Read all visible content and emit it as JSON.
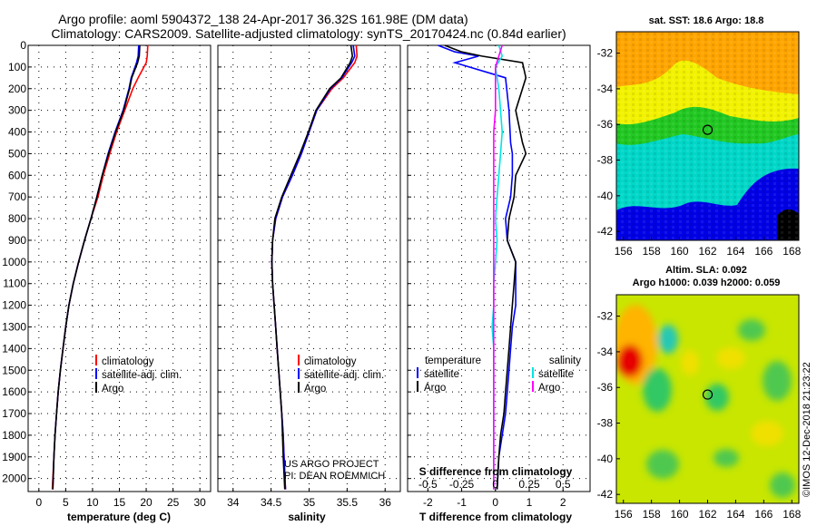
{
  "title_line1": "Argo profile: aoml 5904372_138 24-Apr-2017 36.32S 161.98E (DM data)",
  "title_line2": "Climatology: CARS2009. Satellite-adjusted climatology: synTS_20170424.nc (0.84d earlier)",
  "credit": "US ARGO PROJECT\nPI: DEAN ROEMMICH",
  "watermark": "©IMOS 12-Dec-2018 21:23:22",
  "colors": {
    "climatology": "#ff0000",
    "satellite": "#0000ff",
    "argo": "#000000",
    "sat_t": "#00e5e5",
    "sat_s": "#ff00ff"
  },
  "chart_data": [
    {
      "type": "line",
      "xlabel": "temperature (deg C)",
      "xlim": [
        -2,
        32
      ],
      "ylim": [
        2060,
        0
      ],
      "xticks": [
        0,
        5,
        10,
        15,
        20,
        25,
        30
      ],
      "yticks": [
        0,
        100,
        200,
        300,
        400,
        500,
        600,
        700,
        800,
        900,
        1000,
        1100,
        1200,
        1300,
        1400,
        1500,
        1600,
        1700,
        1800,
        1900,
        2000
      ],
      "legend": [
        "climatology",
        "satellite-adj. clim.",
        "Argo"
      ],
      "series": [
        {
          "name": "climatology",
          "color": "red",
          "x": [
            20.3,
            20.2,
            20.0,
            18.5,
            17.5,
            16.0,
            14.5,
            13.2,
            12.0,
            11.0,
            9.7,
            8.5,
            7.4,
            6.4,
            5.6,
            5.0,
            4.5,
            4.0,
            3.6,
            3.3,
            3.0,
            2.8,
            2.5
          ],
          "y": [
            0,
            50,
            80,
            150,
            200,
            300,
            400,
            500,
            600,
            700,
            800,
            900,
            1000,
            1100,
            1200,
            1300,
            1400,
            1500,
            1600,
            1700,
            1800,
            1900,
            2050
          ]
        },
        {
          "name": "satellite-adj. clim.",
          "color": "blue",
          "x": [
            18.6,
            18.5,
            18.2,
            17.2,
            16.8,
            15.7,
            14.2,
            12.9,
            11.8,
            10.8,
            9.7,
            8.5,
            7.4,
            6.4,
            5.6,
            5.0,
            4.5,
            4.0,
            3.6,
            3.3,
            3.0,
            2.8,
            2.6
          ],
          "y": [
            0,
            50,
            80,
            150,
            200,
            300,
            400,
            500,
            600,
            700,
            800,
            900,
            1000,
            1100,
            1200,
            1300,
            1400,
            1500,
            1600,
            1700,
            1800,
            1900,
            2050
          ]
        },
        {
          "name": "Argo",
          "color": "black",
          "x": [
            18.8,
            18.7,
            18.4,
            17.3,
            16.9,
            15.8,
            14.3,
            13.0,
            11.8,
            10.8,
            9.7,
            8.5,
            7.4,
            6.4,
            5.6,
            5.0,
            4.5,
            4.0,
            3.6,
            3.3,
            3.0,
            2.8,
            2.6
          ],
          "y": [
            0,
            50,
            80,
            150,
            200,
            300,
            400,
            500,
            600,
            700,
            800,
            900,
            1000,
            1100,
            1200,
            1300,
            1400,
            1500,
            1600,
            1700,
            1800,
            1900,
            2050
          ]
        }
      ]
    },
    {
      "type": "line",
      "xlabel": "salinity",
      "xlim": [
        33.8,
        36.2
      ],
      "ylim": [
        2060,
        0
      ],
      "xticks": [
        34,
        34.5,
        35,
        35.5,
        36
      ],
      "legend": [
        "climatology",
        "satellite-adj. clim.",
        "Argo"
      ],
      "series": [
        {
          "name": "climatology",
          "color": "red",
          "x": [
            35.62,
            35.63,
            35.6,
            35.45,
            35.3,
            35.1,
            35.0,
            34.9,
            34.78,
            34.65,
            34.56,
            34.52,
            34.51,
            34.52,
            34.54,
            34.56,
            34.58,
            34.6,
            34.62,
            34.64,
            34.66,
            34.67,
            34.69
          ],
          "y": [
            0,
            50,
            80,
            150,
            200,
            300,
            400,
            500,
            600,
            700,
            800,
            900,
            1000,
            1100,
            1200,
            1300,
            1400,
            1500,
            1600,
            1700,
            1800,
            1900,
            2050
          ]
        },
        {
          "name": "satellite-adj. clim.",
          "color": "blue",
          "x": [
            35.58,
            35.6,
            35.56,
            35.43,
            35.28,
            35.1,
            35.0,
            34.9,
            34.78,
            34.65,
            34.56,
            34.52,
            34.51,
            34.52,
            34.54,
            34.56,
            34.58,
            34.6,
            34.62,
            34.64,
            34.66,
            34.67,
            34.69
          ],
          "y": [
            0,
            50,
            80,
            150,
            200,
            300,
            400,
            500,
            600,
            700,
            800,
            900,
            1000,
            1100,
            1200,
            1300,
            1400,
            1500,
            1600,
            1700,
            1800,
            1900,
            2050
          ]
        },
        {
          "name": "Argo",
          "color": "black",
          "x": [
            35.55,
            35.57,
            35.54,
            35.42,
            35.27,
            35.09,
            34.99,
            34.88,
            34.76,
            34.64,
            34.55,
            34.52,
            34.51,
            34.52,
            34.54,
            34.56,
            34.58,
            34.6,
            34.62,
            34.64,
            34.65,
            34.66,
            34.68
          ],
          "y": [
            0,
            50,
            80,
            150,
            200,
            300,
            400,
            500,
            600,
            700,
            800,
            900,
            1000,
            1100,
            1200,
            1300,
            1400,
            1500,
            1600,
            1700,
            1800,
            1900,
            2050
          ]
        }
      ]
    },
    {
      "type": "line",
      "xlabel": "T difference from climatology",
      "xlabel_top": "S difference from climatology",
      "xlim": [
        -2.6,
        2.8
      ],
      "ylim": [
        2060,
        0
      ],
      "xticks": [
        -2,
        -1,
        0,
        1,
        2
      ],
      "xticks_top": [
        "-0.5",
        "-0.25",
        "0",
        "0.25",
        "0.5"
      ],
      "legend_temperature": {
        "heading": "temperature",
        "items": [
          "satellite",
          "Argo"
        ]
      },
      "legend_salinity": {
        "heading": "salinity",
        "items": [
          "satellite",
          "Argo"
        ]
      },
      "series": [
        {
          "name": "temperature satellite",
          "color": "blue",
          "x": [
            -1.7,
            -1.2,
            -0.5,
            -1.2,
            0.3,
            0.4,
            0.45,
            0.5,
            0.5,
            0.45,
            0.3,
            0.35,
            0.6,
            0.6,
            0.6,
            0.5,
            0.45,
            0.4,
            0.35,
            0.3,
            0.2,
            0.1,
            0.05
          ],
          "y": [
            0,
            30,
            50,
            80,
            150,
            300,
            450,
            500,
            600,
            700,
            800,
            900,
            1000,
            1100,
            1200,
            1300,
            1400,
            1500,
            1600,
            1700,
            1800,
            1900,
            2050
          ]
        },
        {
          "name": "temperature Argo",
          "color": "black",
          "x": [
            -1.5,
            -1.0,
            -0.4,
            0.8,
            0.9,
            0.6,
            0.8,
            0.9,
            0.6,
            0.55,
            0.4,
            0.35,
            0.6,
            0.55,
            0.5,
            0.45,
            0.4,
            0.35,
            0.3,
            0.25,
            0.15,
            0.1,
            0.05
          ],
          "y": [
            0,
            30,
            50,
            80,
            150,
            300,
            450,
            500,
            600,
            700,
            800,
            900,
            1000,
            1100,
            1200,
            1300,
            1400,
            1500,
            1600,
            1700,
            1800,
            1900,
            2050
          ]
        },
        {
          "name": "salinity satellite",
          "color": "cyan",
          "x": [
            0.1,
            0.2,
            0.0,
            0.1,
            0.15,
            0.2,
            0.15,
            0.1,
            0.05,
            0.0,
            0.05,
            0.0,
            -0.05,
            -0.05,
            -0.1,
            -0.05,
            -0.05,
            -0.05,
            -0.05,
            -0.05,
            -0.05,
            -0.05
          ],
          "y": [
            0,
            50,
            100,
            200,
            300,
            400,
            500,
            600,
            700,
            800,
            900,
            1000,
            1100,
            1200,
            1300,
            1400,
            1500,
            1600,
            1700,
            1800,
            1900,
            2050
          ]
        },
        {
          "name": "salinity Argo",
          "color": "magenta",
          "x": [
            0.2,
            0.1,
            0.0,
            0.0,
            0.0,
            -0.05,
            -0.05,
            -0.05,
            -0.05,
            -0.05,
            -0.05,
            -0.05,
            -0.05,
            -0.05,
            -0.05,
            -0.05,
            -0.05,
            -0.05,
            -0.05,
            -0.05,
            -0.05,
            -0.05
          ],
          "y": [
            0,
            50,
            100,
            200,
            300,
            400,
            500,
            600,
            700,
            800,
            900,
            1000,
            1100,
            1200,
            1300,
            1400,
            1500,
            1600,
            1700,
            1800,
            1900,
            2050
          ]
        }
      ]
    },
    {
      "type": "heatmap",
      "title": "sat. SST: 18.6  Argo: 18.8",
      "xlim": [
        155.5,
        168.5
      ],
      "ylim": [
        -42.5,
        -30.8
      ],
      "xticks": [
        156,
        158,
        160,
        162,
        164,
        166,
        168
      ],
      "yticks": [
        -32,
        -34,
        -36,
        -38,
        -40,
        -42
      ],
      "marker": {
        "x": 162,
        "y": -36.3
      }
    },
    {
      "type": "heatmap",
      "title_line1": "Altim. SLA: 0.092",
      "title_line2": "Argo h1000: 0.039 h2000: 0.059",
      "xlim": [
        155.5,
        168.5
      ],
      "ylim": [
        -42.5,
        -30.8
      ],
      "xticks": [
        156,
        158,
        160,
        162,
        164,
        166,
        168
      ],
      "yticks": [
        -32,
        -34,
        -36,
        -38,
        -40,
        -42
      ],
      "marker": {
        "x": 162,
        "y": -36.4
      }
    }
  ]
}
